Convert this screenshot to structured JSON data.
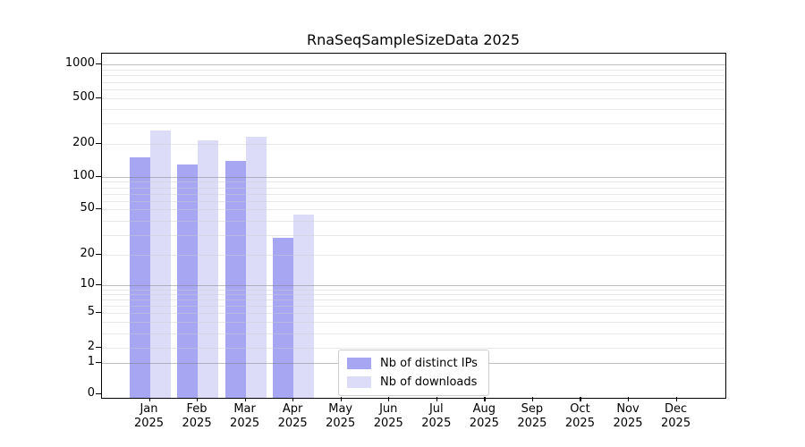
{
  "chart_data": {
    "type": "bar",
    "title": "RnaSeqSampleSizeData 2025",
    "categories": [
      {
        "month": "Jan",
        "year": "2025"
      },
      {
        "month": "Feb",
        "year": "2025"
      },
      {
        "month": "Mar",
        "year": "2025"
      },
      {
        "month": "Apr",
        "year": "2025"
      },
      {
        "month": "May",
        "year": "2025"
      },
      {
        "month": "Jun",
        "year": "2025"
      },
      {
        "month": "Jul",
        "year": "2025"
      },
      {
        "month": "Aug",
        "year": "2025"
      },
      {
        "month": "Sep",
        "year": "2025"
      },
      {
        "month": "Oct",
        "year": "2025"
      },
      {
        "month": "Nov",
        "year": "2025"
      },
      {
        "month": "Dec",
        "year": "2025"
      }
    ],
    "series": [
      {
        "name": "Nb of distinct IPs",
        "color": "#a6a6f3",
        "values": [
          150,
          130,
          140,
          28,
          0,
          0,
          0,
          0,
          0,
          0,
          0,
          0
        ]
      },
      {
        "name": "Nb of downloads",
        "color": "#dcdcf9",
        "values": [
          260,
          215,
          230,
          45,
          0,
          0,
          0,
          0,
          0,
          0,
          0,
          0
        ]
      }
    ],
    "yscale": "log1p",
    "ylim": [
      0,
      1000
    ],
    "yticks": [
      0,
      1,
      2,
      5,
      10,
      20,
      50,
      100,
      200,
      500,
      1000
    ],
    "y_major_grid_values": [
      1,
      10,
      100,
      1000
    ],
    "y_minor_grid_values": [
      2,
      3,
      4,
      5,
      6,
      7,
      8,
      9,
      20,
      30,
      40,
      50,
      60,
      70,
      80,
      90,
      200,
      300,
      400,
      500,
      600,
      700,
      800,
      900
    ],
    "grid": "horizontal",
    "legend_position": "inside-lower-center",
    "axis_color": "#000000",
    "background_color": "#ffffff"
  }
}
